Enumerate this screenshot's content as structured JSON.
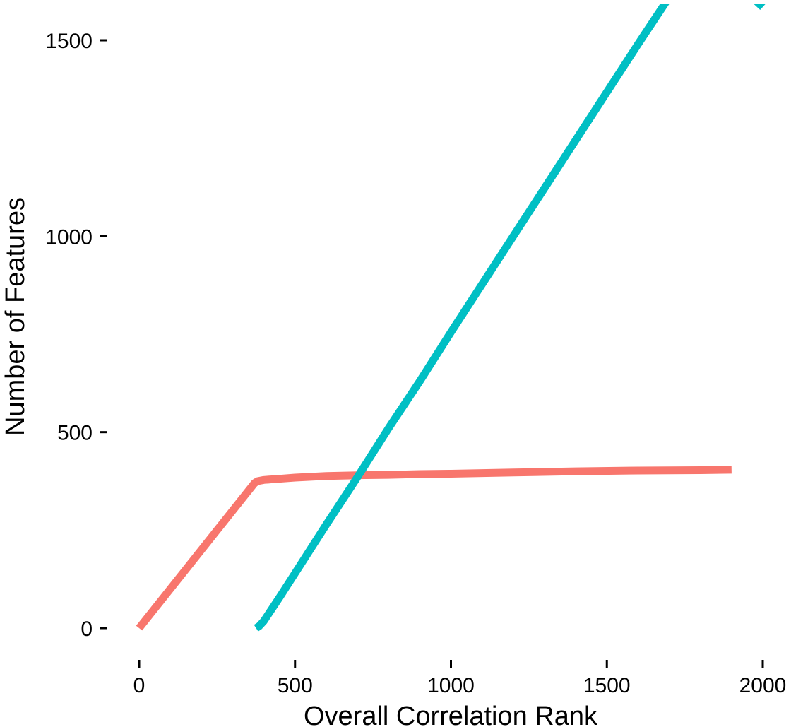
{
  "chart_data": {
    "type": "line",
    "title": "",
    "xlabel": "Overall Correlation Rank",
    "ylabel": "Number of Features",
    "xlim": [
      0,
      2000
    ],
    "ylim": [
      0,
      1600
    ],
    "x_ticks": [
      0,
      500,
      1000,
      1500,
      2000
    ],
    "y_ticks": [
      0,
      500,
      1000,
      1500
    ],
    "grid": false,
    "legend": "none",
    "series": [
      {
        "color": "#F8766D",
        "points": [
          [
            0,
            0
          ],
          [
            370,
            370
          ],
          [
            380,
            375
          ],
          [
            400,
            378
          ],
          [
            450,
            381
          ],
          [
            500,
            384
          ],
          [
            600,
            388
          ],
          [
            700,
            390
          ],
          [
            800,
            391
          ],
          [
            900,
            393
          ],
          [
            1000,
            394
          ],
          [
            1200,
            397
          ],
          [
            1400,
            400
          ],
          [
            1600,
            402
          ],
          [
            1800,
            403
          ],
          [
            1900,
            404
          ]
        ]
      },
      {
        "color": "#00BFC4",
        "points": [
          [
            375,
            0
          ],
          [
            385,
            5
          ],
          [
            400,
            18
          ],
          [
            450,
            78
          ],
          [
            500,
            140
          ],
          [
            600,
            264
          ],
          [
            700,
            385
          ],
          [
            800,
            510
          ],
          [
            900,
            630
          ],
          [
            1000,
            755
          ],
          [
            1200,
            1000
          ],
          [
            1400,
            1245
          ],
          [
            1600,
            1490
          ],
          [
            1800,
            1730
          ],
          [
            2000,
            1585
          ]
        ]
      }
    ]
  }
}
